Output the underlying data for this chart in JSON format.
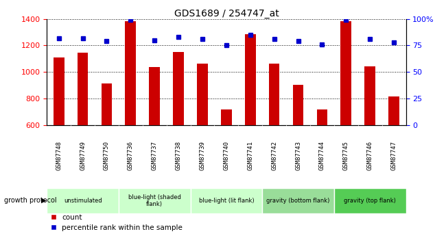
{
  "title": "GDS1689 / 254747_at",
  "samples": [
    "GSM87748",
    "GSM87749",
    "GSM87750",
    "GSM87736",
    "GSM87737",
    "GSM87738",
    "GSM87739",
    "GSM87740",
    "GSM87741",
    "GSM87742",
    "GSM87743",
    "GSM87744",
    "GSM87745",
    "GSM87746",
    "GSM87747"
  ],
  "counts": [
    1110,
    1145,
    915,
    1380,
    1035,
    1150,
    1065,
    720,
    1285,
    1065,
    905,
    720,
    1380,
    1040,
    815
  ],
  "percentile_ranks": [
    82,
    82,
    79,
    99,
    80,
    83,
    81,
    75,
    85,
    81,
    79,
    76,
    99,
    81,
    78
  ],
  "ylim_left": [
    600,
    1400
  ],
  "ylim_right": [
    0,
    100
  ],
  "yticks_left": [
    600,
    800,
    1000,
    1200,
    1400
  ],
  "yticks_right": [
    0,
    25,
    50,
    75,
    100
  ],
  "yticklabels_right": [
    "0",
    "25",
    "50",
    "75",
    "100%"
  ],
  "group_boundaries": [
    {
      "start": 0,
      "end": 3,
      "label": "unstimulated",
      "color": "#ccffcc"
    },
    {
      "start": 3,
      "end": 6,
      "label": "blue-light (shaded\nflank)",
      "color": "#ccffcc"
    },
    {
      "start": 6,
      "end": 9,
      "label": "blue-light (lit flank)",
      "color": "#ccffcc"
    },
    {
      "start": 9,
      "end": 12,
      "label": "gravity (bottom flank)",
      "color": "#99dd99"
    },
    {
      "start": 12,
      "end": 15,
      "label": "gravity (top flank)",
      "color": "#55cc55"
    }
  ],
  "bar_color": "#cc0000",
  "dot_color": "#0000cc",
  "bar_width": 0.45,
  "legend_label_count": "count",
  "legend_label_pct": "percentile rank within the sample",
  "growth_protocol_label": "growth protocol"
}
